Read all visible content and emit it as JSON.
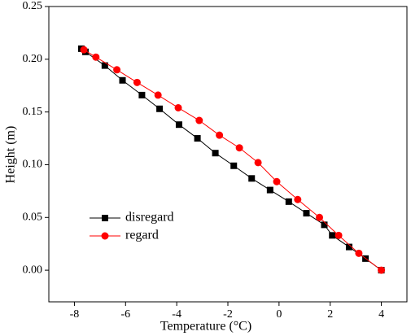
{
  "chart_data": {
    "type": "line",
    "xlabel": "Temperature (°C)",
    "ylabel": "Height (m)",
    "xlim": [
      -9,
      5
    ],
    "xticks": [
      -8,
      -6,
      -4,
      -2,
      0,
      2,
      4
    ],
    "ylim": [
      -0.03,
      0.25
    ],
    "yticks": [
      {
        "value": 0,
        "label": "0.00"
      },
      0.05,
      {
        "value": 0.1,
        "label": "0.10"
      },
      0.15,
      {
        "value": 0.2,
        "label": "0.20"
      },
      0.25
    ],
    "legend": "lower left",
    "series": [
      {
        "name": "disregard",
        "color": "#000000",
        "marker": "square",
        "x": [
          -7.73,
          -7.57,
          -6.81,
          -6.12,
          -5.36,
          -4.67,
          -3.91,
          -3.19,
          -2.49,
          -1.77,
          -1.07,
          -0.35,
          0.38,
          1.07,
          1.77,
          2.08,
          2.74,
          3.38,
          4.0
        ],
        "values": [
          0.21,
          0.207,
          0.194,
          0.18,
          0.166,
          0.153,
          0.138,
          0.125,
          0.111,
          0.099,
          0.087,
          0.076,
          0.065,
          0.054,
          0.043,
          0.033,
          0.022,
          0.011,
          0.0
        ]
      },
      {
        "name": "regard",
        "color": "#ff0000",
        "marker": "circle",
        "x": [
          -7.63,
          -7.16,
          -6.34,
          -5.55,
          -4.73,
          -3.94,
          -3.12,
          -2.33,
          -1.55,
          -0.82,
          -0.09,
          0.73,
          1.58,
          2.33,
          3.12,
          4.0
        ],
        "values": [
          0.209,
          0.202,
          0.19,
          0.178,
          0.166,
          0.154,
          0.142,
          0.128,
          0.116,
          0.102,
          0.084,
          0.067,
          0.05,
          0.033,
          0.016,
          0.0
        ]
      }
    ]
  }
}
